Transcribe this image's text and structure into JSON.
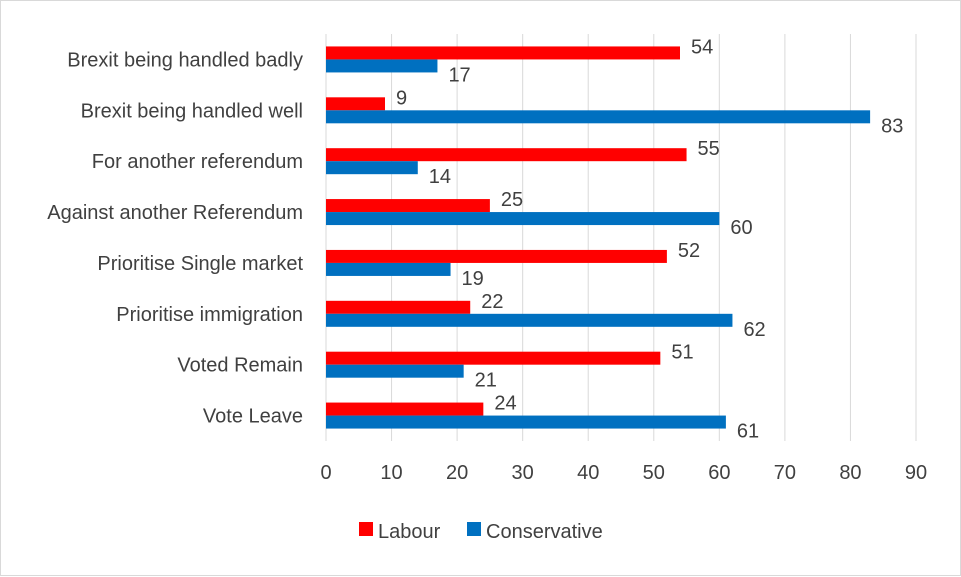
{
  "chart_data": {
    "type": "bar",
    "orientation": "horizontal",
    "categories": [
      "Brexit being handled badly",
      "Brexit being handled well",
      "For another referendum",
      "Against another Referendum",
      "Prioritise Single market",
      "Prioritise immigration",
      "Voted Remain",
      "Vote Leave"
    ],
    "series": [
      {
        "name": "Labour",
        "color": "#ff0000",
        "values": [
          54,
          9,
          55,
          25,
          52,
          22,
          51,
          24
        ]
      },
      {
        "name": "Conservative",
        "color": "#0070c0",
        "values": [
          17,
          83,
          14,
          60,
          19,
          62,
          21,
          61
        ]
      }
    ],
    "xlim": [
      0,
      90
    ],
    "xticks": [
      0,
      10,
      20,
      30,
      40,
      50,
      60,
      70,
      80,
      90
    ],
    "grid": "vertical",
    "legend": "bottom",
    "title": "",
    "xlabel": "",
    "ylabel": ""
  }
}
